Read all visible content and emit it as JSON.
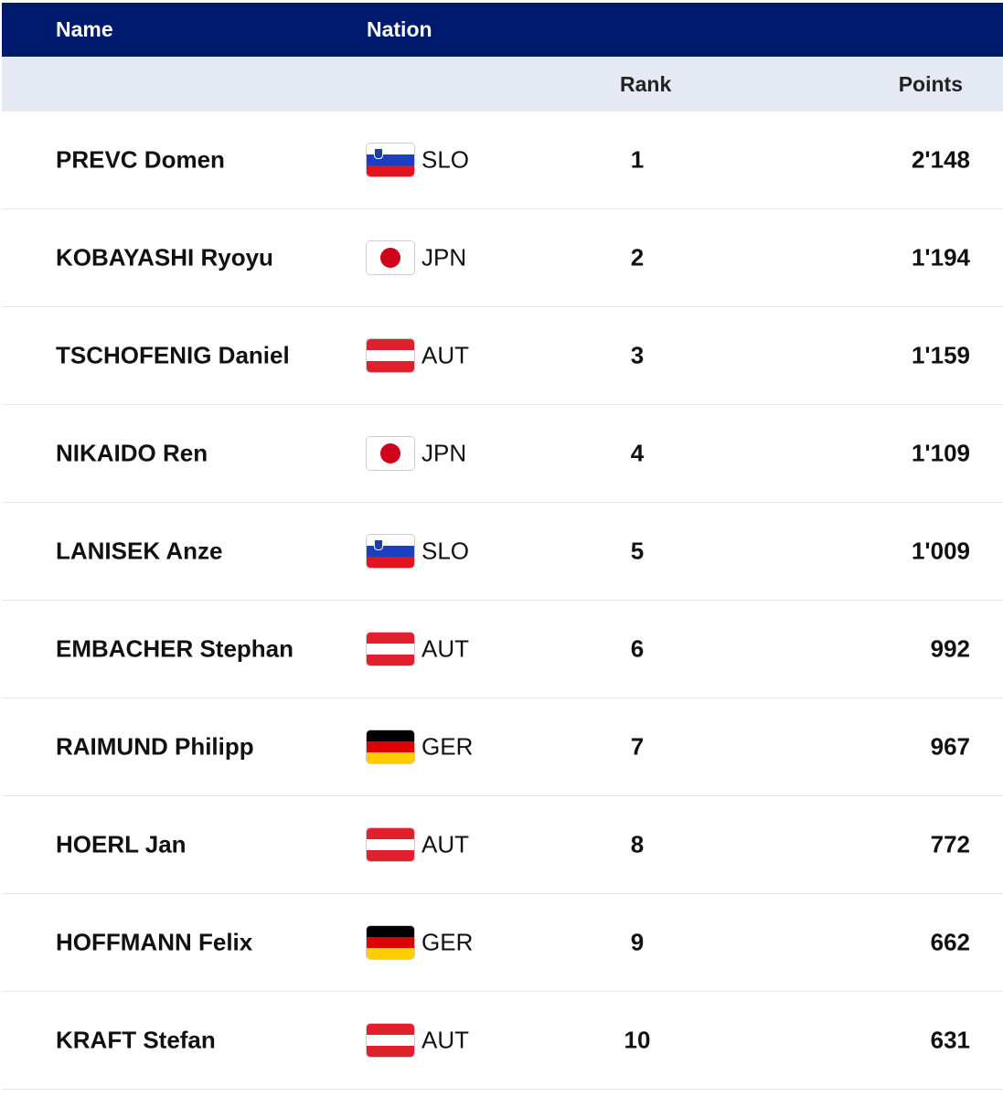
{
  "table": {
    "headers": {
      "name": "Name",
      "nation": "Nation",
      "rank": "Rank",
      "points": "Points"
    },
    "colors": {
      "header_bg": "#001a6e",
      "subheader_bg": "#e4e9f3"
    },
    "rows": [
      {
        "name": "PREVC Domen",
        "nation": "SLO",
        "rank": "1",
        "points": "2'148"
      },
      {
        "name": "KOBAYASHI Ryoyu",
        "nation": "JPN",
        "rank": "2",
        "points": "1'194"
      },
      {
        "name": "TSCHOFENIG Daniel",
        "nation": "AUT",
        "rank": "3",
        "points": "1'159"
      },
      {
        "name": "NIKAIDO Ren",
        "nation": "JPN",
        "rank": "4",
        "points": "1'109"
      },
      {
        "name": "LANISEK Anze",
        "nation": "SLO",
        "rank": "5",
        "points": "1'009"
      },
      {
        "name": "EMBACHER Stephan",
        "nation": "AUT",
        "rank": "6",
        "points": "992"
      },
      {
        "name": "RAIMUND Philipp",
        "nation": "GER",
        "rank": "7",
        "points": "967"
      },
      {
        "name": "HOERL Jan",
        "nation": "AUT",
        "rank": "8",
        "points": "772"
      },
      {
        "name": "HOFFMANN Felix",
        "nation": "GER",
        "rank": "9",
        "points": "662"
      },
      {
        "name": "KRAFT Stefan",
        "nation": "AUT",
        "rank": "10",
        "points": "631"
      }
    ]
  }
}
